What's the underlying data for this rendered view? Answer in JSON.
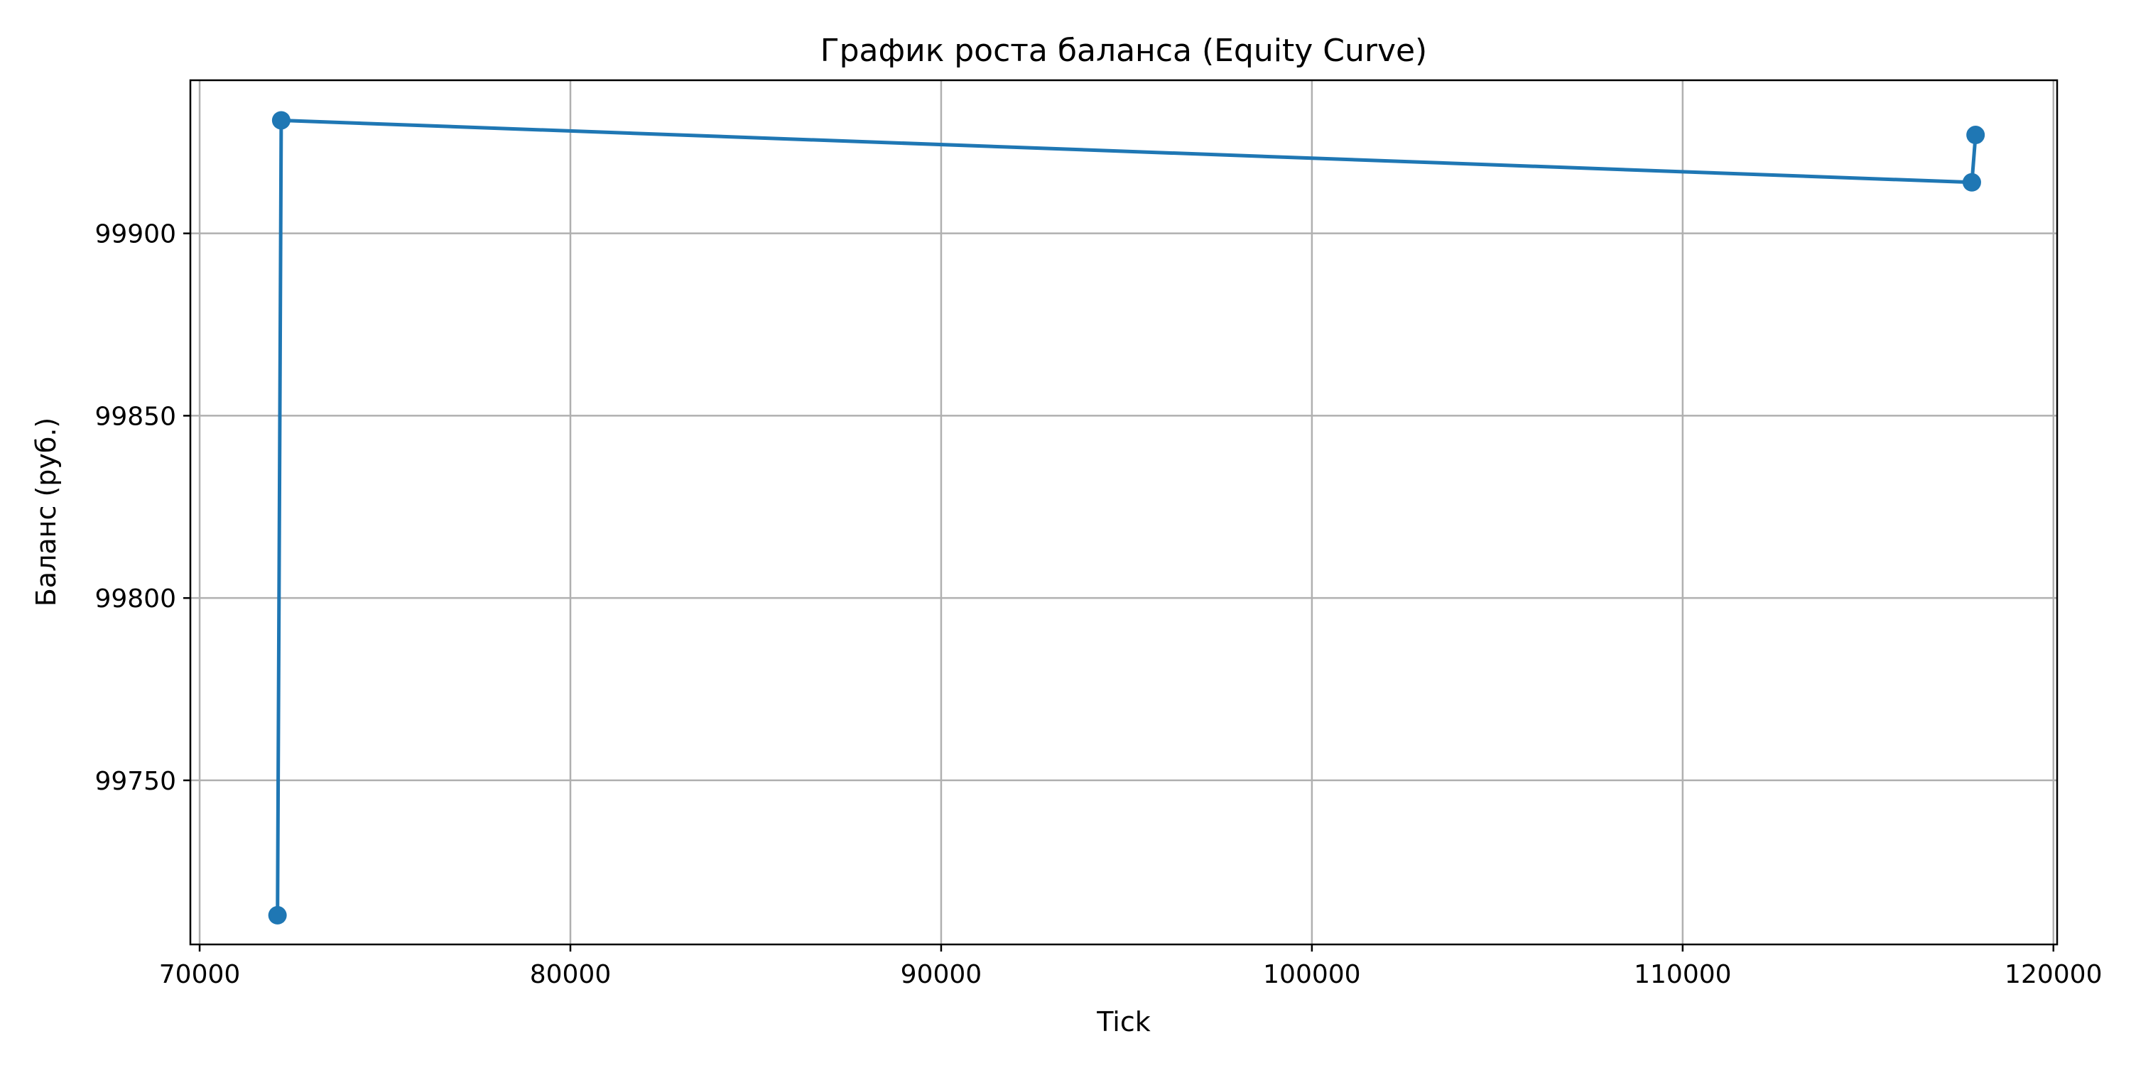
{
  "chart_data": {
    "type": "line",
    "title": "График роста баланса (Equity Curve)",
    "xlabel": "Tick",
    "ylabel": "Баланс (руб.)",
    "xlim": [
      69750,
      120100
    ],
    "ylim": [
      99705,
      99942
    ],
    "x_ticks": [
      70000,
      80000,
      90000,
      100000,
      110000,
      120000
    ],
    "y_ticks": [
      99750,
      99800,
      99850,
      99900
    ],
    "grid": true,
    "series": [
      {
        "color": "#1f77b4",
        "marker": "circle",
        "x": [
          72100,
          72200,
          117800,
          117900
        ],
        "y": [
          99713,
          99931,
          99914,
          99927
        ]
      }
    ]
  }
}
